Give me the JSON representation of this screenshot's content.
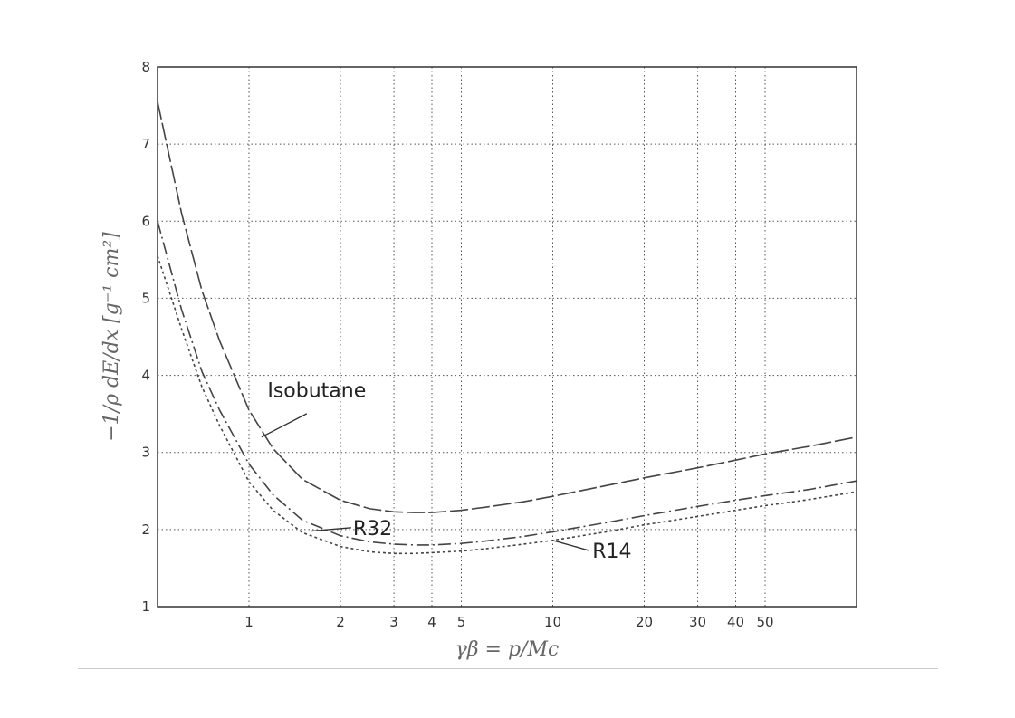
{
  "chart_data": {
    "type": "line",
    "xscale": "log",
    "xlim": [
      0.5,
      100
    ],
    "ylim": [
      1,
      8
    ],
    "xticks": [
      1,
      2,
      3,
      4,
      5,
      10,
      20,
      30,
      40,
      50
    ],
    "xtick_labels": [
      "1",
      "2",
      "3",
      "4",
      "5",
      "10",
      "20",
      "30",
      "40",
      "50"
    ],
    "yticks": [
      1,
      2,
      3,
      4,
      5,
      6,
      7,
      8
    ],
    "ytick_labels": [
      "1",
      "2",
      "3",
      "4",
      "5",
      "6",
      "7",
      "8"
    ],
    "grid": true,
    "xlabel": "γβ = p/Mc",
    "ylabel": "−1/ρ dE/dx [g⁻¹ cm²]",
    "series": [
      {
        "name": "Isobutane",
        "style": "long-dash",
        "x": [
          0.5,
          0.6,
          0.7,
          0.8,
          1,
          1.2,
          1.5,
          2,
          2.5,
          3,
          3.5,
          4,
          5,
          6,
          8,
          10,
          15,
          20,
          30,
          40,
          50,
          70,
          100
        ],
        "y": [
          7.55,
          6.1,
          5.1,
          4.45,
          3.55,
          3.05,
          2.65,
          2.38,
          2.27,
          2.23,
          2.22,
          2.22,
          2.25,
          2.29,
          2.36,
          2.43,
          2.57,
          2.67,
          2.8,
          2.9,
          2.98,
          3.08,
          3.2
        ]
      },
      {
        "name": "R32",
        "style": "dash-dot",
        "x": [
          0.5,
          0.6,
          0.7,
          0.8,
          1,
          1.2,
          1.5,
          2,
          2.5,
          3,
          3.5,
          4,
          5,
          6,
          8,
          10,
          15,
          20,
          30,
          40,
          50,
          70,
          100
        ],
        "y": [
          6.0,
          4.85,
          4.05,
          3.55,
          2.85,
          2.45,
          2.12,
          1.92,
          1.84,
          1.81,
          1.8,
          1.8,
          1.82,
          1.85,
          1.91,
          1.97,
          2.09,
          2.18,
          2.3,
          2.38,
          2.44,
          2.52,
          2.63
        ]
      },
      {
        "name": "R14",
        "style": "dotted",
        "x": [
          0.5,
          0.6,
          0.7,
          0.8,
          1,
          1.2,
          1.5,
          2,
          2.5,
          3,
          3.5,
          4,
          5,
          6,
          8,
          10,
          15,
          20,
          30,
          40,
          50,
          70,
          100
        ],
        "y": [
          5.55,
          4.6,
          3.85,
          3.35,
          2.62,
          2.25,
          1.96,
          1.78,
          1.71,
          1.69,
          1.69,
          1.7,
          1.72,
          1.75,
          1.81,
          1.86,
          1.97,
          2.06,
          2.17,
          2.25,
          2.31,
          2.39,
          2.49
        ]
      }
    ],
    "annotations": [
      {
        "text": "Isobutane",
        "x": 1.6,
        "y": 3.6,
        "arrow_to": [
          1.1,
          3.2
        ]
      },
      {
        "text": "R32",
        "x": 2.2,
        "y": 2.0,
        "arrow_to": [
          1.6,
          1.98
        ]
      },
      {
        "text": "R14",
        "x": 14,
        "y": 1.75,
        "arrow_to": [
          10,
          1.86
        ]
      }
    ]
  }
}
